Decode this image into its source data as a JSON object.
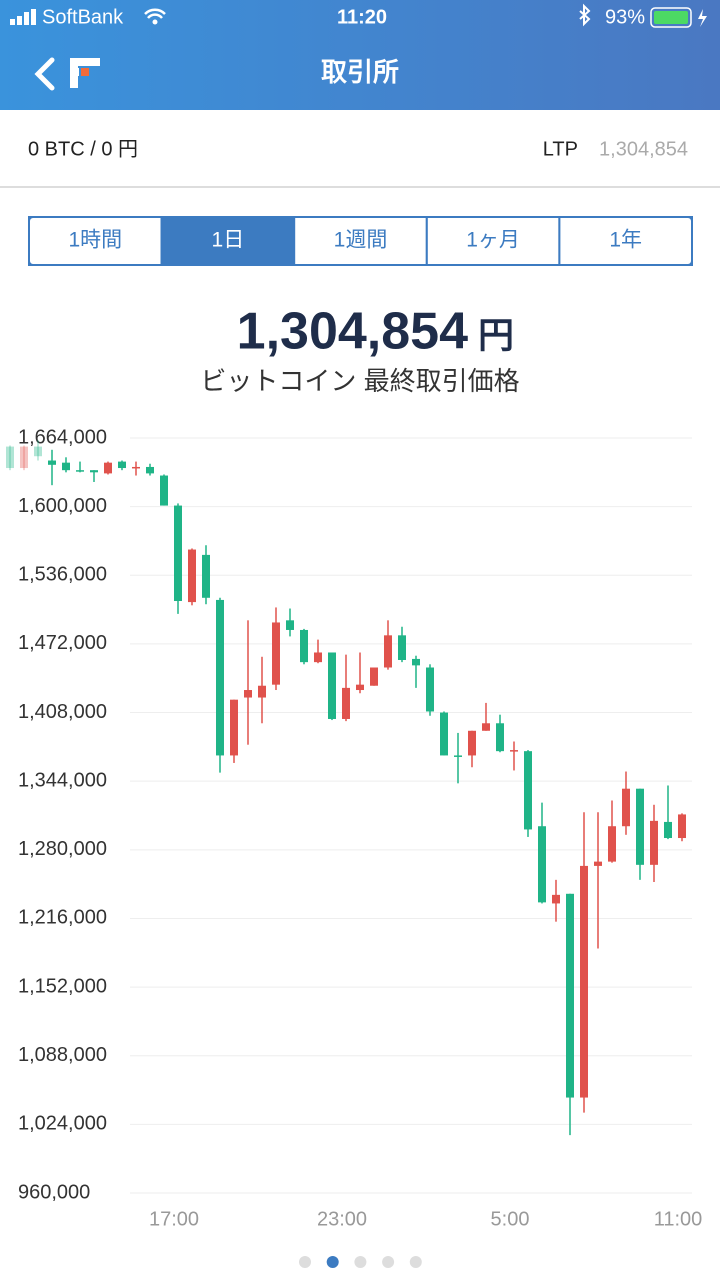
{
  "status_bar": {
    "carrier": "SoftBank",
    "time": "11:20",
    "battery": "93%"
  },
  "header": {
    "title": "取引所"
  },
  "balance": {
    "text": "0 BTC / 0 円",
    "ltp_label": "LTP",
    "ltp_value": "1,304,854"
  },
  "tabs": [
    "1時間",
    "1日",
    "1週間",
    "1ヶ月",
    "1年"
  ],
  "active_tab": 1,
  "price": {
    "value": "1,304,854",
    "unit": "円",
    "caption": "ビットコイン 最終取引価格"
  },
  "pager": {
    "count": 5,
    "active": 1
  },
  "chart_data": {
    "type": "candlestick",
    "categories": [
      null,
      null,
      null,
      null,
      null,
      null,
      null,
      null,
      null,
      null,
      null,
      null,
      "17:00",
      null,
      null,
      null,
      null,
      null,
      null,
      null,
      null,
      null,
      null,
      null,
      "23:00",
      null,
      null,
      null,
      null,
      null,
      null,
      null,
      null,
      null,
      null,
      null,
      "5:00",
      null,
      null,
      null,
      null,
      null,
      null,
      null,
      null,
      null,
      null,
      null,
      "11:00"
    ],
    "open": [
      1656000,
      1636000,
      1656000,
      1643000,
      1641000,
      1634000,
      1634000,
      1631000,
      1642000,
      1636000,
      1637000,
      1629000,
      1601000,
      1511000,
      1555000,
      1513000,
      1368000,
      1422000,
      1422000,
      1434000,
      1494000,
      1485000,
      1455000,
      1464000,
      1402000,
      1429000,
      1433000,
      1450000,
      1480000,
      1458000,
      1450000,
      1408000,
      1368000,
      1368000,
      1391000,
      1398000,
      1372000,
      1372000,
      1302000,
      1230000,
      1239000,
      1049000,
      1265000,
      1269000,
      1302000,
      1337000,
      1266000,
      1306000,
      1291000
    ],
    "high": [
      1657000,
      1657000,
      1662000,
      1653000,
      1646000,
      1642000,
      1634000,
      1642000,
      1643000,
      1642000,
      1640000,
      1630000,
      1603000,
      1561000,
      1564000,
      1515000,
      1420000,
      1494000,
      1460000,
      1506000,
      1505000,
      1486000,
      1476000,
      1464000,
      1462000,
      1464000,
      1450000,
      1494000,
      1488000,
      1461000,
      1453000,
      1409000,
      1389000,
      1391000,
      1417000,
      1406000,
      1381000,
      1373000,
      1324000,
      1252000,
      1239000,
      1315000,
      1315000,
      1326000,
      1353000,
      1337000,
      1322000,
      1340000,
      1314000
    ],
    "low": [
      1634000,
      1634000,
      1643000,
      1620000,
      1632000,
      1632000,
      1623000,
      1630000,
      1634000,
      1629000,
      1629000,
      1601000,
      1500000,
      1508000,
      1509000,
      1352000,
      1361000,
      1378000,
      1398000,
      1429000,
      1479000,
      1453000,
      1454000,
      1401000,
      1400000,
      1426000,
      1433000,
      1448000,
      1455000,
      1431000,
      1405000,
      1368000,
      1342000,
      1357000,
      1391000,
      1371000,
      1354000,
      1292000,
      1230000,
      1213000,
      1014000,
      1035000,
      1188000,
      1268000,
      1294000,
      1252000,
      1250000,
      1290000,
      1288000
    ],
    "close": [
      1636000,
      1656000,
      1647000,
      1639000,
      1634000,
      1634000,
      1632000,
      1641000,
      1636000,
      1637000,
      1631000,
      1601000,
      1512000,
      1560000,
      1515000,
      1368000,
      1420000,
      1429000,
      1433000,
      1492000,
      1485000,
      1455000,
      1464000,
      1402000,
      1431000,
      1434000,
      1450000,
      1480000,
      1457000,
      1452000,
      1409000,
      1368000,
      1367000,
      1391000,
      1398000,
      1372000,
      1373000,
      1299000,
      1231000,
      1238000,
      1049000,
      1265000,
      1269000,
      1302000,
      1337000,
      1266000,
      1307000,
      1291000,
      1313000
    ],
    "up_color": "#e0524c",
    "down_color": "#1fb487",
    "ylim": [
      960000,
      1664000
    ],
    "yticks": [
      {
        "value": 960000,
        "label": "960,000"
      },
      {
        "value": 1024000,
        "label": "1,024,000"
      },
      {
        "value": 1088000,
        "label": "1,088,000"
      },
      {
        "value": 1152000,
        "label": "1,152,000"
      },
      {
        "value": 1216000,
        "label": "1,216,000"
      },
      {
        "value": 1280000,
        "label": "1,280,000"
      },
      {
        "value": 1344000,
        "label": "1,344,000"
      },
      {
        "value": 1408000,
        "label": "1,408,000"
      },
      {
        "value": 1472000,
        "label": "1,472,000"
      },
      {
        "value": 1536000,
        "label": "1,536,000"
      },
      {
        "value": 1600000,
        "label": "1,600,000"
      },
      {
        "value": 1664000,
        "label": "1,664,000"
      }
    ],
    "grid": true
  }
}
